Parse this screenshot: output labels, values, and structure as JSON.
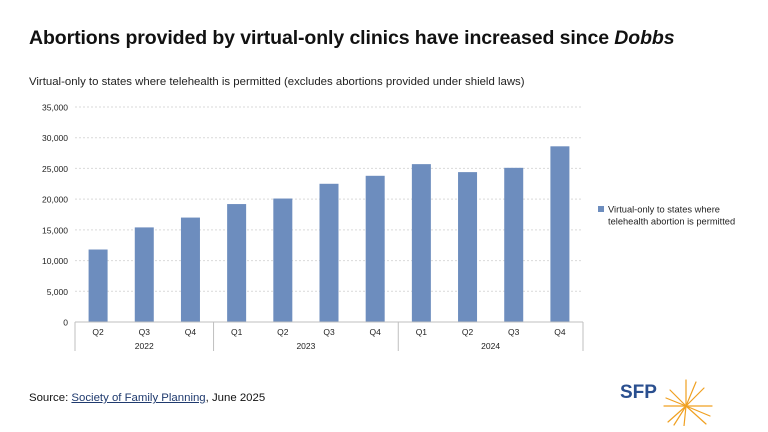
{
  "page": {
    "title_prefix": "Abortions provided by virtual-only clinics have increased since ",
    "title_emphasis": "Dobbs",
    "subtitle": "Virtual-only to states where telehealth is permitted (excludes abortions provided under shield laws)",
    "source_label": "Source: ",
    "source_link": "Society of Family Planning",
    "source_suffix": ", June 2025",
    "logo_text": "SFP"
  },
  "colors": {
    "bar": "#6d8dbe",
    "grid": "#d9d9d9",
    "axis": "#bfbfbf",
    "text": "#222222",
    "logo_blue": "#2a4f8f",
    "logo_orange": "#f0a020"
  },
  "chart_data": {
    "type": "bar",
    "title": "",
    "xlabel": "",
    "ylabel": "",
    "categories": [
      "Q2",
      "Q3",
      "Q4",
      "Q1",
      "Q2",
      "Q3",
      "Q4",
      "Q1",
      "Q2",
      "Q3",
      "Q4"
    ],
    "groups": [
      {
        "label": "2022",
        "count": 3
      },
      {
        "label": "2023",
        "count": 4
      },
      {
        "label": "2024",
        "count": 4
      }
    ],
    "series": [
      {
        "name": "Virtual-only to states where telehealth abortion is permitted",
        "values": [
          11800,
          15400,
          17000,
          19200,
          20100,
          22500,
          23800,
          25700,
          24400,
          25100,
          28600
        ]
      }
    ],
    "ylim": [
      0,
      35000
    ],
    "yticks": [
      0,
      5000,
      10000,
      15000,
      20000,
      25000,
      30000,
      35000
    ],
    "ytick_labels": [
      "0",
      "5,000",
      "10,000",
      "15,000",
      "20,000",
      "25,000",
      "30,000",
      "35,000"
    ],
    "legend_position": "right",
    "grid": true
  }
}
